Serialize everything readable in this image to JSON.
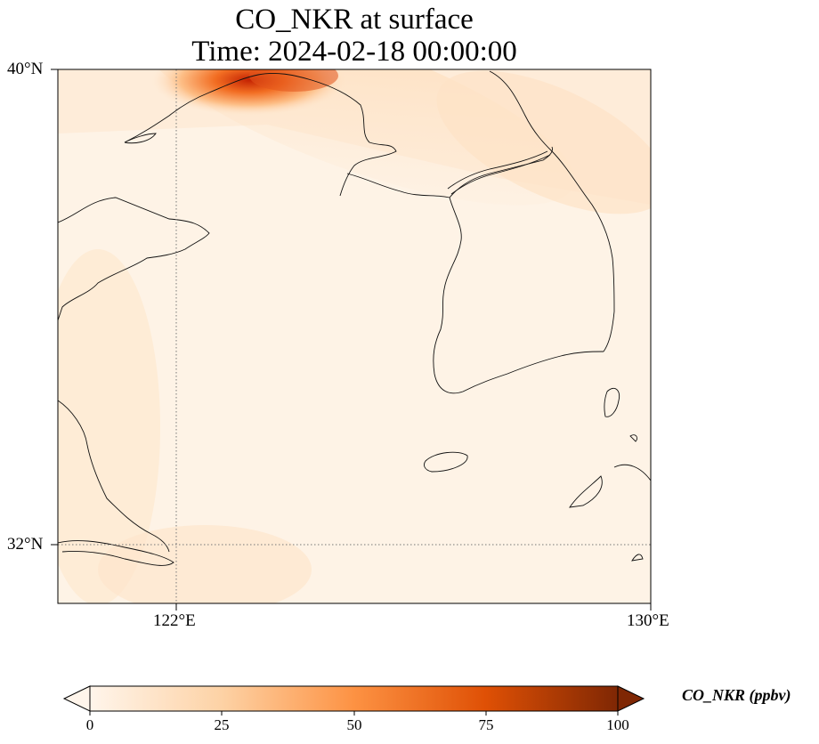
{
  "title": {
    "line1": "CO_NKR at surface",
    "line2": "Time: 2024-02-18 00:00:00"
  },
  "axes": {
    "lat_ticks": [
      "40°N",
      "32°N"
    ],
    "lon_ticks": [
      "122°E",
      "130°E"
    ],
    "lat_range": [
      31,
      40
    ],
    "lon_range": [
      120,
      130
    ],
    "gridlines": "dotted at 122°E and 32°N"
  },
  "colorbar": {
    "label": "CO_NKR (ppbv)",
    "ticks": [
      "0",
      "25",
      "50",
      "75",
      "100"
    ],
    "range": [
      0,
      100
    ],
    "extend": "both",
    "colormap": [
      "#fff5eb",
      "#fdd2a5",
      "#fd9243",
      "#df5005",
      "#7f2704"
    ]
  },
  "field": {
    "description_values_ppbv": {
      "background": 3,
      "northwest_plume_max": 60,
      "northeast_band": 12
    }
  }
}
